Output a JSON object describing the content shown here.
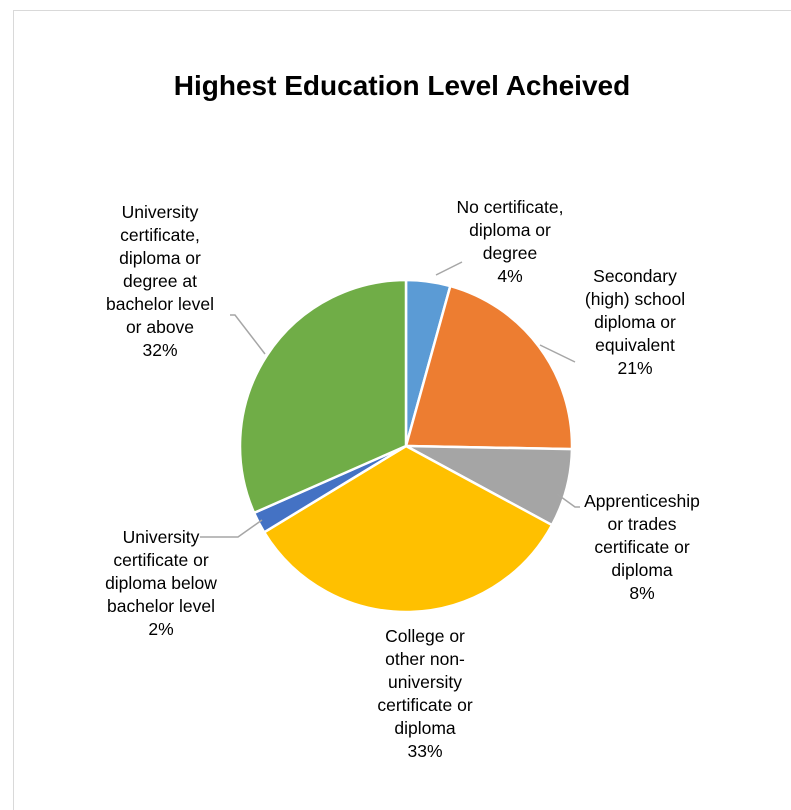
{
  "chart_data": {
    "type": "pie",
    "title": "Highest Education Level Acheived",
    "slices": [
      {
        "label": [
          "No certificate,",
          "diploma or",
          "degree"
        ],
        "percent_label": "4%",
        "value": 4.3,
        "color": "#5b9bd5"
      },
      {
        "label": [
          "Secondary",
          "(high) school",
          "diploma or",
          "equivalent"
        ],
        "percent_label": "21%",
        "value": 21,
        "color": "#ed7d31"
      },
      {
        "label": [
          "Apprenticeship",
          "or trades",
          "certificate or",
          "diploma"
        ],
        "percent_label": "8%",
        "value": 7.6,
        "color": "#a5a5a5"
      },
      {
        "label": [
          "College or",
          "other non-",
          "university",
          "certificate or",
          "diploma"
        ],
        "percent_label": "33%",
        "value": 33.4,
        "color": "#ffc000"
      },
      {
        "label": [
          "University",
          "certificate or",
          "diploma below",
          "bachelor level"
        ],
        "percent_label": "2%",
        "value": 2.1,
        "color": "#4472c4"
      },
      {
        "label": [
          "University",
          "certificate,",
          "diploma or",
          "degree at",
          "bachelor level",
          "or above"
        ],
        "percent_label": "32%",
        "value": 31.6,
        "color": "#70ad47"
      }
    ]
  }
}
